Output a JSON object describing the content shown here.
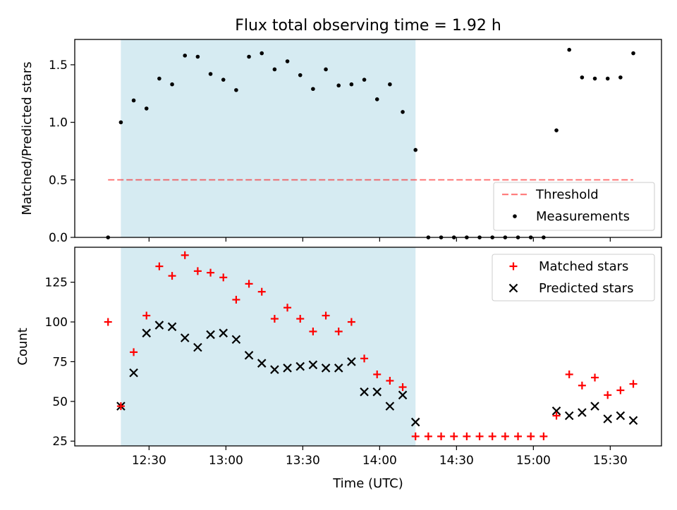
{
  "chart_data": {
    "title": "Flux total observing time = 1.92 h",
    "xlabel": "Time (UTC)",
    "x_ticks": [
      "12:30",
      "13:00",
      "13:30",
      "14:00",
      "14:30",
      "15:00",
      "15:30"
    ],
    "x_tick_minutes": [
      750,
      780,
      810,
      840,
      870,
      900,
      930
    ],
    "xlim": [
      "12:01",
      "15:50"
    ],
    "shaded_span": [
      "12:19",
      "14:14"
    ],
    "colors": {
      "shade": "#add8e6",
      "threshold": "#ff0000",
      "matched": "#ff0000",
      "predicted": "#000000",
      "measurements": "#000000"
    },
    "panels": [
      {
        "type": "scatter",
        "ylabel": "Matched/Predicted stars",
        "ylim": [
          0,
          1.72
        ],
        "y_ticks": [
          0.0,
          0.5,
          1.0,
          1.5
        ],
        "y_tick_labels": [
          "0.0",
          "0.5",
          "1.0",
          "1.5"
        ],
        "legend_position": "lower-right",
        "threshold": {
          "name": "Threshold",
          "value": 0.5,
          "x_range": [
            "12:14",
            "15:39"
          ]
        },
        "series": [
          {
            "name": "Measurements",
            "x": [
              "12:14",
              "12:19",
              "12:24",
              "12:29",
              "12:34",
              "12:39",
              "12:44",
              "12:49",
              "12:54",
              "12:59",
              "13:04",
              "13:09",
              "13:14",
              "13:19",
              "13:24",
              "13:29",
              "13:34",
              "13:39",
              "13:44",
              "13:49",
              "13:54",
              "13:59",
              "14:04",
              "14:09",
              "14:14",
              "14:19",
              "14:24",
              "14:29",
              "14:34",
              "14:39",
              "14:44",
              "14:49",
              "14:54",
              "14:59",
              "15:04",
              "15:09",
              "15:14",
              "15:19",
              "15:24",
              "15:29",
              "15:34",
              "15:39"
            ],
            "values": [
              0.0,
              1.0,
              1.19,
              1.12,
              1.38,
              1.33,
              1.58,
              1.57,
              1.42,
              1.37,
              1.28,
              1.57,
              1.6,
              1.46,
              1.53,
              1.41,
              1.29,
              1.46,
              1.32,
              1.33,
              1.37,
              1.2,
              1.33,
              1.09,
              0.76,
              0.0,
              0.0,
              0.0,
              0.0,
              0.0,
              0.0,
              0.0,
              0.0,
              0.0,
              0.0,
              0.93,
              1.63,
              1.39,
              1.38,
              1.38,
              1.39,
              1.6
            ]
          }
        ]
      },
      {
        "type": "scatter",
        "ylabel": "Count",
        "ylim": [
          22,
          147
        ],
        "y_ticks": [
          25,
          50,
          75,
          100,
          125
        ],
        "y_tick_labels": [
          "25",
          "50",
          "75",
          "100",
          "125"
        ],
        "legend_position": "upper-right",
        "series": [
          {
            "name": "Matched stars",
            "marker": "plus",
            "x": [
              "12:14",
              "12:19",
              "12:24",
              "12:29",
              "12:34",
              "12:39",
              "12:44",
              "12:49",
              "12:54",
              "12:59",
              "13:04",
              "13:09",
              "13:14",
              "13:19",
              "13:24",
              "13:29",
              "13:34",
              "13:39",
              "13:44",
              "13:49",
              "13:54",
              "13:59",
              "14:04",
              "14:09",
              "14:14",
              "14:19",
              "14:24",
              "14:29",
              "14:34",
              "14:39",
              "14:44",
              "14:49",
              "14:54",
              "14:59",
              "15:04",
              "15:09",
              "15:14",
              "15:19",
              "15:24",
              "15:29",
              "15:34",
              "15:39"
            ],
            "values": [
              100,
              47,
              81,
              104,
              135,
              129,
              142,
              132,
              131,
              128,
              114,
              124,
              119,
              102,
              109,
              102,
              94,
              104,
              94,
              100,
              77,
              67,
              63,
              59,
              28,
              28,
              28,
              28,
              28,
              28,
              28,
              28,
              28,
              28,
              28,
              41,
              67,
              60,
              65,
              54,
              57,
              61
            ]
          },
          {
            "name": "Predicted stars",
            "marker": "x",
            "x": [
              "12:19",
              "12:24",
              "12:29",
              "12:34",
              "12:39",
              "12:44",
              "12:49",
              "12:54",
              "12:59",
              "13:04",
              "13:09",
              "13:14",
              "13:19",
              "13:24",
              "13:29",
              "13:34",
              "13:39",
              "13:44",
              "13:49",
              "13:54",
              "13:59",
              "14:04",
              "14:09",
              "14:14",
              "15:09",
              "15:14",
              "15:19",
              "15:24",
              "15:29",
              "15:34",
              "15:39"
            ],
            "values": [
              47,
              68,
              93,
              98,
              97,
              90,
              84,
              92,
              93,
              89,
              79,
              74,
              70,
              71,
              72,
              73,
              71,
              71,
              75,
              56,
              56,
              47,
              54,
              37,
              44,
              41,
              43,
              47,
              39,
              41,
              38
            ]
          }
        ]
      }
    ]
  }
}
